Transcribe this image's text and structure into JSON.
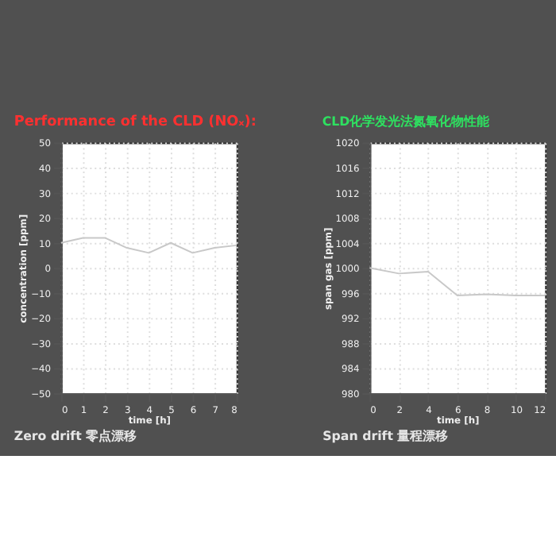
{
  "chart_data": [
    {
      "type": "line",
      "title": "Performance of the CLD (NOₓ):",
      "xlabel": "time [h]",
      "ylabel": "concentration [ppm]",
      "x": [
        0,
        1,
        2,
        3,
        4,
        5,
        6,
        7,
        8
      ],
      "series": [
        {
          "color": "#c8c8c8",
          "values": [
            10,
            12,
            12,
            8,
            6,
            10,
            6,
            8,
            9
          ]
        }
      ],
      "xlim": [
        0,
        8
      ],
      "xticks": [
        0,
        1,
        2,
        3,
        4,
        5,
        6,
        7,
        8
      ],
      "ylim": [
        -50,
        50
      ],
      "yticks": [
        -50,
        -40,
        -30,
        -20,
        -10,
        0,
        10,
        20,
        30,
        40,
        50
      ],
      "grid": true,
      "marker": "none",
      "line_style": "solid",
      "annotations": [
        "Zero drift 零点漂移"
      ]
    },
    {
      "type": "line",
      "title": "CLD化学发光法氮氧化物性能",
      "xlabel": "time [h]",
      "ylabel": "span gas [ppm]",
      "x": [
        0,
        2,
        4,
        6,
        8,
        10,
        12
      ],
      "series": [
        {
          "color": "#c8c8c8",
          "values": [
            1000,
            999.1,
            999.4,
            995.6,
            995.8,
            995.6,
            995.6
          ]
        }
      ],
      "xlim": [
        0,
        12
      ],
      "xticks": [
        0,
        2,
        4,
        6,
        8,
        10,
        12
      ],
      "ylim": [
        980,
        1020
      ],
      "yticks": [
        980,
        984,
        988,
        992,
        996,
        1000,
        1004,
        1008,
        1012,
        1016,
        1020
      ],
      "grid": true,
      "marker": "none",
      "line_style": "solid",
      "annotations": [
        "Span drift 量程漂移"
      ]
    }
  ]
}
